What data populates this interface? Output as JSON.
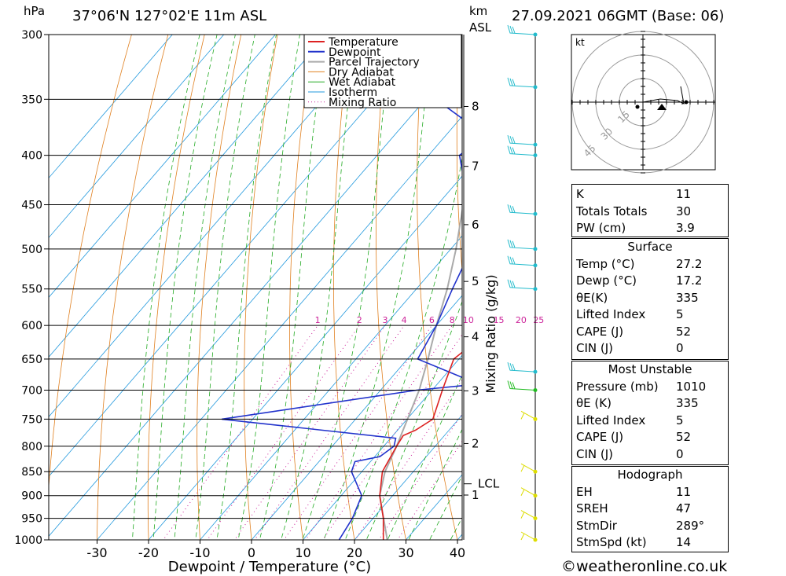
{
  "header": {
    "unit_hpa": "hPa",
    "location": "37°06'N  127°02'E  11m  ASL",
    "unit_km": "km",
    "unit_asl": "ASL",
    "datetime": "27.09.2021  06GMT  (Base: 06)"
  },
  "footer": {
    "credit": "©weatheronline.co.uk"
  },
  "chart_data": {
    "type": "skew-t",
    "xlabel": "Dewpoint / Temperature (°C)",
    "y2label": "Mixing Ratio (g/kg)",
    "pressure_ticks": [
      300,
      350,
      400,
      450,
      500,
      550,
      600,
      650,
      700,
      750,
      800,
      850,
      900,
      950,
      1000
    ],
    "temp_ticks": [
      -30,
      -20,
      -10,
      0,
      10,
      20,
      30,
      40
    ],
    "km_ticks": [
      1,
      2,
      3,
      4,
      5,
      6,
      7,
      8
    ],
    "lcl_label": "LCL",
    "mixing_ratio_labels": [
      "1",
      "2",
      "3",
      "4",
      "6",
      "8",
      "10",
      "15",
      "20",
      "25"
    ],
    "legend": [
      "Temperature",
      "Dewpoint",
      "Parcel Trajectory",
      "Dry Adiabat",
      "Wet Adiabat",
      "Isotherm",
      "Mixing Ratio"
    ],
    "colors": {
      "temperature": "#dd2222",
      "dewpoint": "#2233cc",
      "parcel": "#aaaaaa",
      "dry_adiabat": "#e08020",
      "wet_adiabat": "#22aa22",
      "isotherm": "#2299dd",
      "mixing_ratio": "#cc2299"
    },
    "temperature": [
      [
        1010,
        27.2
      ],
      [
        1000,
        25.6
      ],
      [
        950,
        22
      ],
      [
        900,
        17.5
      ],
      [
        850,
        14
      ],
      [
        800,
        12.5
      ],
      [
        780,
        12
      ],
      [
        770,
        13.5
      ],
      [
        750,
        15
      ],
      [
        700,
        12
      ],
      [
        650,
        9
      ],
      [
        630,
        10
      ],
      [
        600,
        7
      ],
      [
        550,
        5
      ],
      [
        520,
        5
      ],
      [
        500,
        3
      ],
      [
        450,
        -2
      ],
      [
        400,
        -7
      ],
      [
        370,
        -12
      ]
    ],
    "dewpoint": [
      [
        1010,
        17.2
      ],
      [
        1000,
        17
      ],
      [
        950,
        16
      ],
      [
        900,
        14
      ],
      [
        850,
        8
      ],
      [
        830,
        7
      ],
      [
        820,
        11
      ],
      [
        800,
        12
      ],
      [
        785,
        11
      ],
      [
        750,
        -26
      ],
      [
        700,
        7
      ],
      [
        690,
        18
      ],
      [
        650,
        2
      ],
      [
        600,
        0
      ],
      [
        550,
        -3
      ],
      [
        500,
        -6
      ],
      [
        450,
        -14
      ],
      [
        400,
        -24
      ],
      [
        390,
        -23
      ],
      [
        380,
        -23
      ],
      [
        350,
        -38
      ],
      [
        340,
        -37
      ],
      [
        300,
        -54
      ]
    ],
    "parcel": [
      [
        1010,
        27.2
      ],
      [
        900,
        17.5
      ],
      [
        850,
        14.5
      ],
      [
        800,
        12.5
      ],
      [
        700,
        7.5
      ],
      [
        650,
        4
      ],
      [
        600,
        0
      ],
      [
        550,
        -4
      ],
      [
        500,
        -9
      ],
      [
        450,
        -15
      ],
      [
        400,
        -22
      ],
      [
        350,
        -31
      ],
      [
        300,
        -42
      ]
    ],
    "wind_profile": [
      {
        "p": 1000,
        "color": "#dddd00"
      },
      {
        "p": 950,
        "color": "#dddd00"
      },
      {
        "p": 900,
        "color": "#dddd00"
      },
      {
        "p": 850,
        "color": "#dddd00"
      },
      {
        "p": 750,
        "color": "#dddd00"
      },
      {
        "p": 700,
        "color": "#22bb22"
      },
      {
        "p": 670,
        "color": "#22bbcc"
      },
      {
        "p": 550,
        "color": "#22bbcc"
      },
      {
        "p": 520,
        "color": "#22bbcc"
      },
      {
        "p": 500,
        "color": "#22bbcc"
      },
      {
        "p": 460,
        "color": "#22bbcc"
      },
      {
        "p": 400,
        "color": "#22bbcc"
      },
      {
        "p": 390,
        "color": "#22bbcc"
      },
      {
        "p": 340,
        "color": "#22bbcc"
      },
      {
        "p": 300,
        "color": "#22bbcc"
      }
    ],
    "hodograph": {
      "unit": "kt",
      "rings": [
        "15",
        "30",
        "45"
      ]
    }
  },
  "indices": {
    "basic": [
      {
        "label": "K",
        "value": "11"
      },
      {
        "label": "Totals Totals",
        "value": "30"
      },
      {
        "label": "PW (cm)",
        "value": "3.9"
      }
    ],
    "surface": {
      "title": "Surface",
      "rows": [
        {
          "label": "Temp (°C)",
          "value": "27.2"
        },
        {
          "label": "Dewp (°C)",
          "value": "17.2"
        },
        {
          "label": "θE(K)",
          "value": "335"
        },
        {
          "label": "Lifted Index",
          "value": "5"
        },
        {
          "label": "CAPE (J)",
          "value": "52"
        },
        {
          "label": "CIN (J)",
          "value": "0"
        }
      ]
    },
    "most_unstable": {
      "title": "Most Unstable",
      "rows": [
        {
          "label": "Pressure (mb)",
          "value": "1010"
        },
        {
          "label": "θE (K)",
          "value": "335"
        },
        {
          "label": "Lifted Index",
          "value": "5"
        },
        {
          "label": "CAPE (J)",
          "value": "52"
        },
        {
          "label": "CIN (J)",
          "value": "0"
        }
      ]
    },
    "hodograph": {
      "title": "Hodograph",
      "rows": [
        {
          "label": "EH",
          "value": "11"
        },
        {
          "label": "SREH",
          "value": "47"
        },
        {
          "label": "StmDir",
          "value": "289°"
        },
        {
          "label": "StmSpd (kt)",
          "value": "14"
        }
      ]
    }
  }
}
